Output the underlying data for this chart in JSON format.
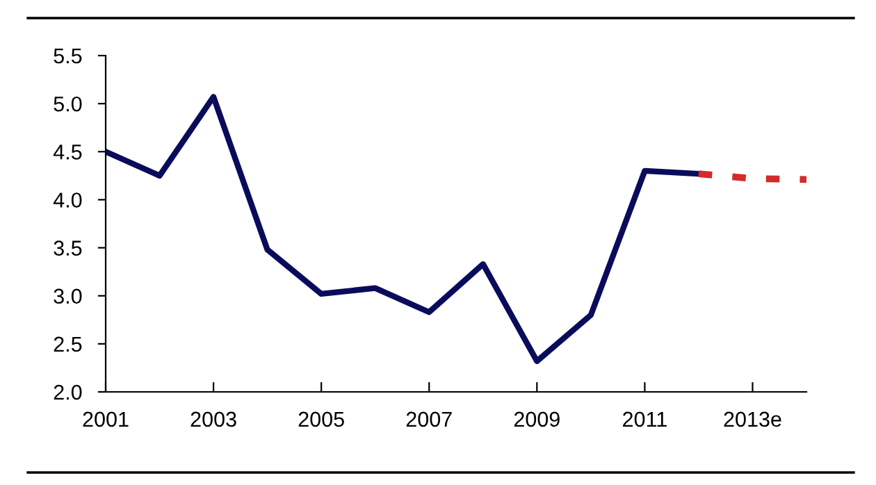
{
  "chart_data": {
    "type": "line",
    "xlim": [
      2001,
      2014
    ],
    "ylim": [
      2.0,
      5.5
    ],
    "xticks": [
      2001,
      2003,
      2005,
      2007,
      2009,
      2011,
      {
        "value": 2013,
        "label": "2013e"
      }
    ],
    "yticks": [
      {
        "value": 2.0,
        "label": "2.0"
      },
      {
        "value": 2.5,
        "label": "2.5"
      },
      {
        "value": 3.0,
        "label": "3.0"
      },
      {
        "value": 3.5,
        "label": "3.5"
      },
      {
        "value": 4.0,
        "label": "4.0"
      },
      {
        "value": 4.5,
        "label": "4.5"
      },
      {
        "value": 5.0,
        "label": "5.0"
      },
      {
        "value": 5.5,
        "label": "5.5"
      }
    ],
    "grid": false,
    "series": [
      {
        "color": "#0b0b5c",
        "line_style": "solid",
        "x": [
          2001,
          2002,
          2003,
          2004,
          2005,
          2006,
          2007,
          2008,
          2009,
          2010,
          2011,
          2012
        ],
        "values": [
          4.5,
          4.25,
          5.07,
          3.48,
          3.02,
          3.08,
          2.83,
          3.33,
          2.32,
          2.8,
          4.3,
          4.27
        ]
      },
      {
        "color": "#d42a2a",
        "line_style": "dashed",
        "x": [
          2012,
          2013,
          2014
        ],
        "values": [
          4.27,
          4.22,
          4.21
        ]
      }
    ]
  }
}
